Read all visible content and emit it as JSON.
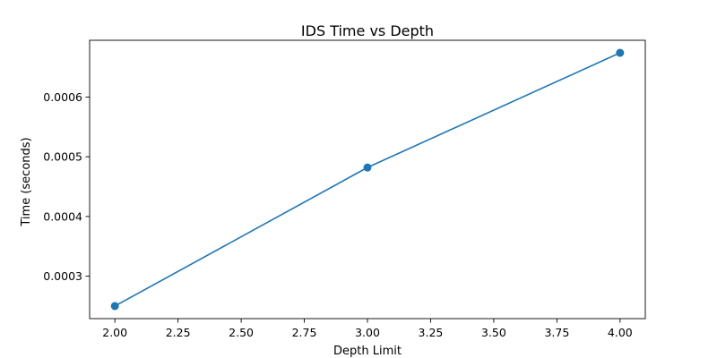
{
  "chart_data": {
    "type": "line",
    "title": "IDS Time vs Depth",
    "xlabel": "Depth Limit",
    "ylabel": "Time (seconds)",
    "x": [
      2.0,
      3.0,
      4.0
    ],
    "series": [
      {
        "values": [
          0.00025,
          0.000482,
          0.000674
        ],
        "color": "#1f77b4",
        "marker": "circle"
      }
    ],
    "xlim": [
      1.9,
      4.1
    ],
    "ylim": [
      0.000229,
      0.000695
    ],
    "xticks": [
      2.0,
      2.25,
      2.5,
      2.75,
      3.0,
      3.25,
      3.5,
      3.75,
      4.0
    ],
    "xtick_labels": [
      "2.00",
      "2.25",
      "2.50",
      "2.75",
      "3.00",
      "3.25",
      "3.50",
      "3.75",
      "4.00"
    ],
    "yticks": [
      0.0003,
      0.0004,
      0.0005,
      0.0006
    ],
    "ytick_labels": [
      "0.0003",
      "0.0004",
      "0.0005",
      "0.0006"
    ],
    "grid": false,
    "legend": "none"
  }
}
